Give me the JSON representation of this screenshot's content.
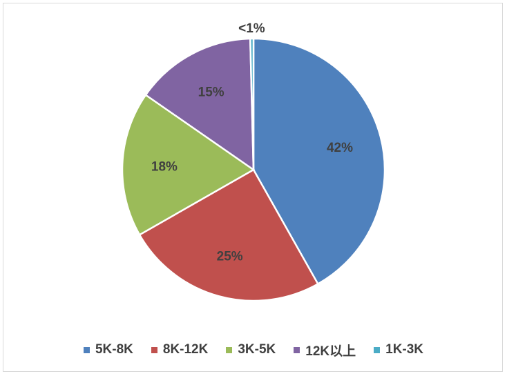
{
  "chart_data": {
    "type": "pie",
    "title": "",
    "slices": [
      {
        "name": "5K-8K",
        "value": 42,
        "label": "42%",
        "color": "#4f81bd"
      },
      {
        "name": "8K-12K",
        "value": 25,
        "label": "25%",
        "color": "#c0504d"
      },
      {
        "name": "3K-5K",
        "value": 18,
        "label": "18%",
        "color": "#9bbb59"
      },
      {
        "name": "12K以上",
        "value": 15,
        "label": "15%",
        "color": "#8064a2"
      },
      {
        "name": "1K-3K",
        "value": 0.4,
        "label": "<1%",
        "color": "#4bacc6"
      }
    ],
    "legend_position": "bottom"
  }
}
